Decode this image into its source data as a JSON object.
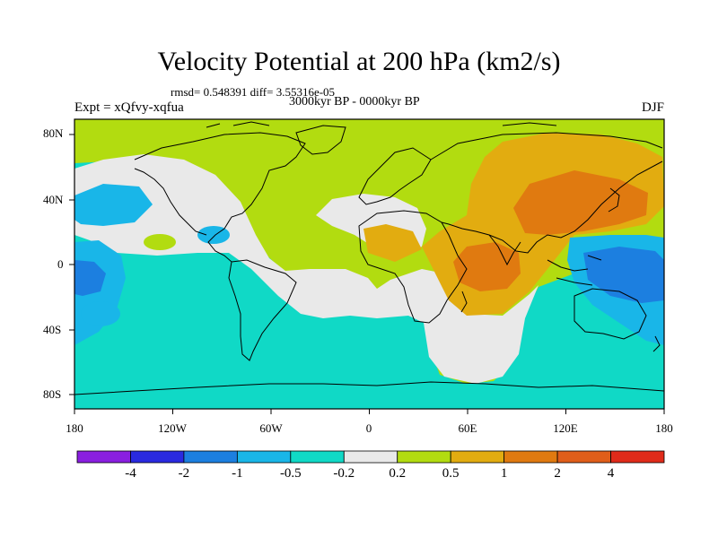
{
  "title": "Velocity Potential at 200 hPa (km2/s)",
  "stats": "rmsd= 0.548391 diff= 3.55316e-05",
  "period": "3000kyr BP - 0000kyr BP",
  "experiment": "Expt = xQfvy-xqfua",
  "season": "DJF",
  "lat_labels": [
    "80N",
    "40N",
    "0",
    "40S",
    "80S"
  ],
  "lon_labels": [
    "180",
    "120W",
    "60W",
    "0",
    "60E",
    "120E",
    "180"
  ],
  "colorbar": {
    "labels": [
      "-4",
      "-2",
      "-1",
      "-0.5",
      "-0.2",
      "0.2",
      "0.5",
      "1",
      "2",
      "4"
    ],
    "colors": [
      "#8a1fe0",
      "#2a2ae0",
      "#1c7fe0",
      "#19b6e8",
      "#10d9c6",
      "#e9e9e9",
      "#b2dc10",
      "#e2ac10",
      "#e07a10",
      "#e05e1a",
      "#e02b1a"
    ]
  },
  "palette": {
    "land_outline": "#000000",
    "field_positive_small": "#b2dc10",
    "field_neutral": "#e9e9e9",
    "field_negative_small": "#10d9c6",
    "field_negative_mid": "#19b6e8",
    "field_negative_large": "#1c7fe0",
    "field_positive_mid": "#e2ac10",
    "field_positive_large": "#e07a10"
  }
}
